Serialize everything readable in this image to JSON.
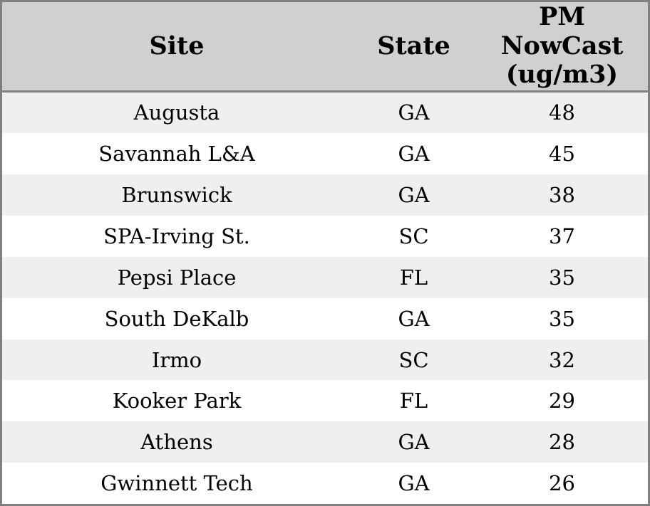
{
  "table": {
    "headers": {
      "site": "Site",
      "state": "State",
      "pm_lines": [
        "PM",
        "NowCast",
        "(ug/m3)"
      ]
    },
    "rows": [
      {
        "site": "Augusta",
        "state": "GA",
        "pm": "48"
      },
      {
        "site": "Savannah L&A",
        "state": "GA",
        "pm": "45"
      },
      {
        "site": "Brunswick",
        "state": "GA",
        "pm": "38"
      },
      {
        "site": "SPA-Irving St.",
        "state": "SC",
        "pm": "37"
      },
      {
        "site": "Pepsi Place",
        "state": "FL",
        "pm": "35"
      },
      {
        "site": "South DeKalb",
        "state": "GA",
        "pm": "35"
      },
      {
        "site": "Irmo",
        "state": "SC",
        "pm": "32"
      },
      {
        "site": "Kooker Park",
        "state": "FL",
        "pm": "29"
      },
      {
        "site": "Athens",
        "state": "GA",
        "pm": "28"
      },
      {
        "site": "Gwinnett Tech",
        "state": "GA",
        "pm": "26"
      }
    ]
  },
  "chart_data": {
    "type": "table",
    "columns": [
      "Site",
      "State",
      "PM NowCast (ug/m3)"
    ],
    "rows": [
      [
        "Augusta",
        "GA",
        48
      ],
      [
        "Savannah L&A",
        "GA",
        45
      ],
      [
        "Brunswick",
        "GA",
        38
      ],
      [
        "SPA-Irving St.",
        "SC",
        37
      ],
      [
        "Pepsi Place",
        "FL",
        35
      ],
      [
        "South DeKalb",
        "GA",
        35
      ],
      [
        "Irmo",
        "SC",
        32
      ],
      [
        "Kooker Park",
        "FL",
        29
      ],
      [
        "Athens",
        "GA",
        28
      ],
      [
        "Gwinnett Tech",
        "GA",
        26
      ]
    ]
  },
  "colors": {
    "header_bg": "#d0d0d0",
    "border": "#808080",
    "row_alt_bg": "#efefef",
    "row_bg": "#ffffff",
    "text": "#000000"
  }
}
